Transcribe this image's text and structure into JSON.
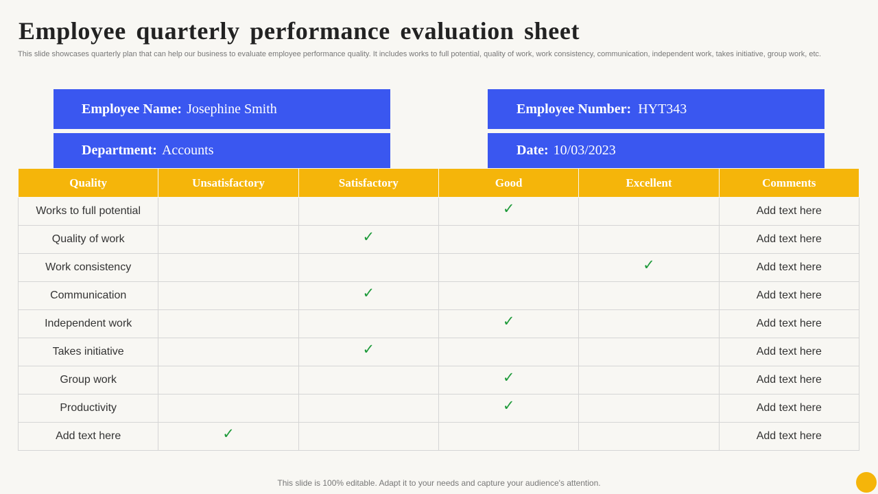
{
  "title": "Employee quarterly performance evaluation sheet",
  "subtitle": "This slide showcases quarterly plan that can help our business to evaluate employee performance quality. It includes works to full potential, quality of work, work consistency, communication, independent work, takes initiative, group work, etc.",
  "info": {
    "employee_name_label": "Employee Name:",
    "employee_name_value": "Josephine Smith",
    "employee_number_label": "Employee Number:",
    "employee_number_value": "HYT343",
    "department_label": "Department:",
    "department_value": "Accounts",
    "date_label": "Date:",
    "date_value": "10/03/2023"
  },
  "table": {
    "headers": [
      "Quality",
      "Unsatisfactory",
      "Satisfactory",
      "Good",
      "Excellent",
      "Comments"
    ],
    "check_symbol": "✓",
    "rows": [
      {
        "quality": "Works to full potential",
        "rating": "Good",
        "comment": "Add text here"
      },
      {
        "quality": "Quality of work",
        "rating": "Satisfactory",
        "comment": "Add text here"
      },
      {
        "quality": "Work consistency",
        "rating": "Excellent",
        "comment": "Add text here"
      },
      {
        "quality": "Communication",
        "rating": "Satisfactory",
        "comment": "Add text here"
      },
      {
        "quality": "Independent work",
        "rating": "Good",
        "comment": "Add text here"
      },
      {
        "quality": "Takes initiative",
        "rating": "Satisfactory",
        "comment": "Add text here"
      },
      {
        "quality": "Group work",
        "rating": "Good",
        "comment": "Add text here"
      },
      {
        "quality": "Productivity",
        "rating": "Good",
        "comment": "Add text here"
      },
      {
        "quality": "Add text here",
        "rating": "Unsatisfactory",
        "comment": "Add text here"
      }
    ]
  },
  "footer": "This slide is 100% editable. Adapt it to your needs and capture your audience's attention.",
  "colors": {
    "info_box": "#3a57f0",
    "header_row": "#f5b50a",
    "check": "#1e9a3a",
    "background": "#f8f7f3"
  }
}
